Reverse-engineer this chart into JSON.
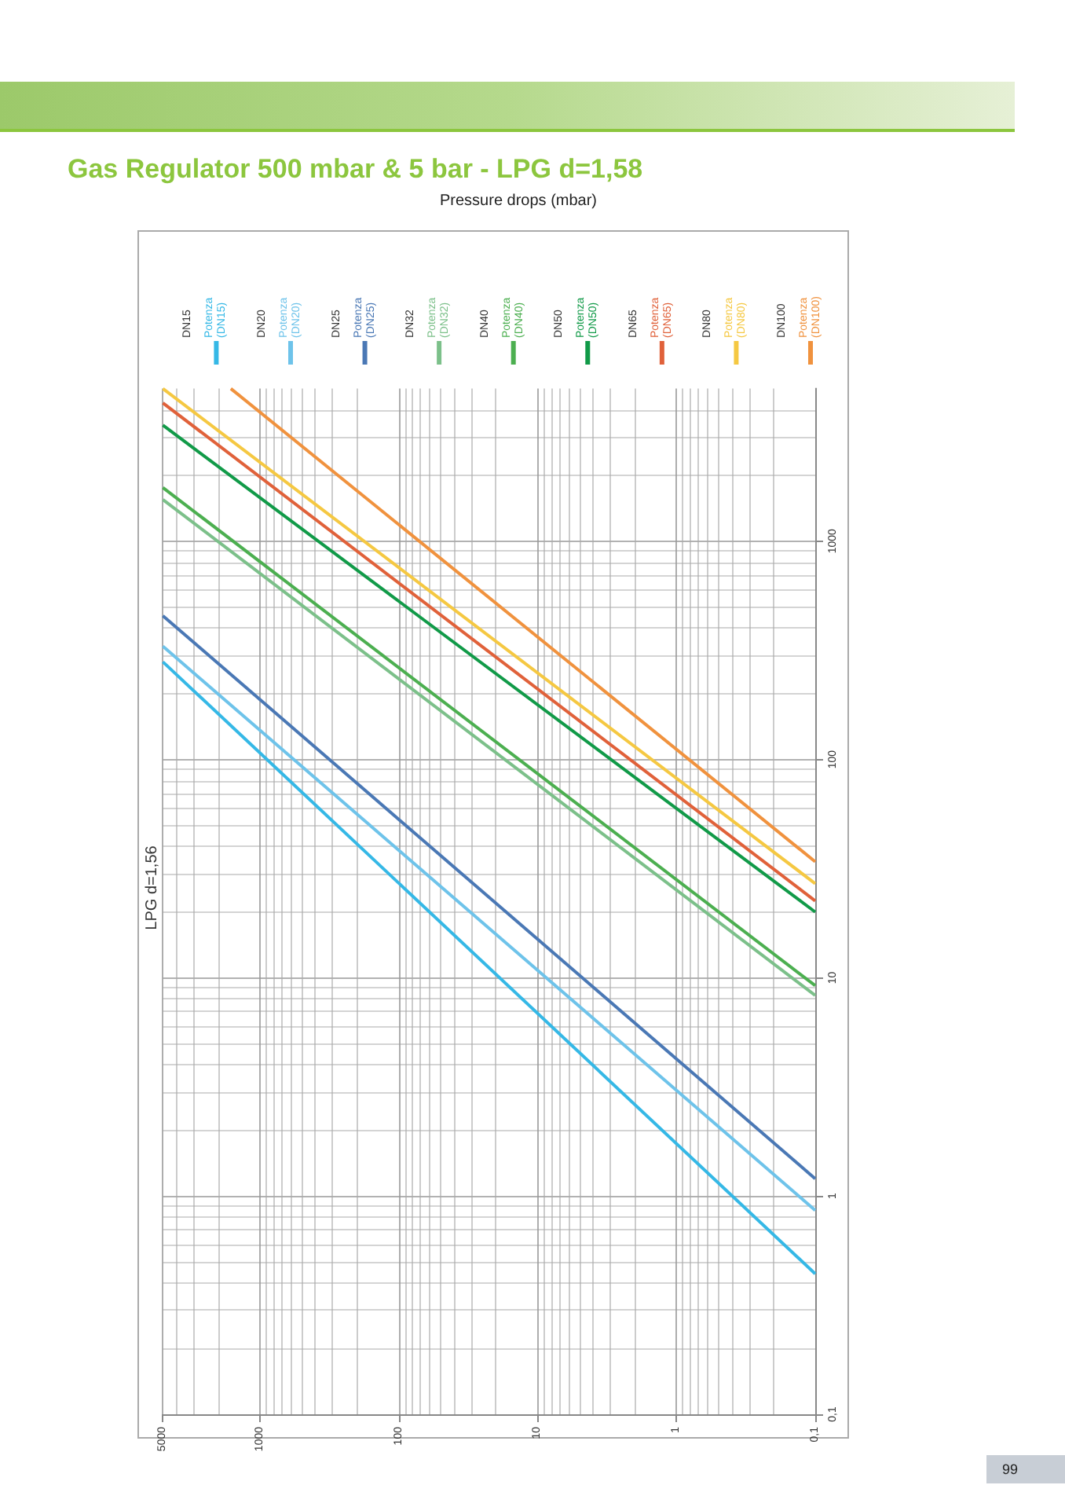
{
  "chart_data": {
    "type": "line",
    "title": "Gas Regulator 500 mbar & 5 bar - LPG d=1,58",
    "subtitle": "Pressure drops (mbar)",
    "ylabel": "LPG d=1,56",
    "annotations": [
      "DN15",
      "DN20",
      "DN25",
      "DN32",
      "DN40",
      "DN50",
      "DN65",
      "DN80",
      "DN100",
      "99"
    ],
    "log": "xy",
    "xlim": [
      5000,
      0.1
    ],
    "xticks": [
      5000,
      1000,
      100,
      10,
      1,
      {
        "value": 0.1,
        "label": "0,1"
      }
    ],
    "ylim": [
      0.1,
      5000
    ],
    "yticks": [
      {
        "value": 0.1,
        "label": "0,1"
      },
      1,
      10,
      100,
      1000
    ],
    "grid": true,
    "legend": "top",
    "marker": "none",
    "line_style": "solid",
    "series": [
      {
        "name": "Potenza (DN15)",
        "color": "#35b8e6",
        "x": [
          5000,
          0.1
        ],
        "values": [
          280,
          0.44
        ]
      },
      {
        "name": "Potenza (DN20)",
        "color": "#6ec3ea",
        "x": [
          5000,
          0.1
        ],
        "values": [
          330,
          0.86
        ]
      },
      {
        "name": "Potenza (DN25)",
        "color": "#4a78b5",
        "x": [
          5000,
          0.1
        ],
        "values": [
          455,
          1.2
        ]
      },
      {
        "name": "Potenza (DN32)",
        "color": "#7cc08a",
        "x": [
          5000,
          0.1
        ],
        "values": [
          1550,
          8.3
        ]
      },
      {
        "name": "Potenza (DN40)",
        "color": "#4caf50",
        "x": [
          5000,
          0.1
        ],
        "values": [
          1760,
          9.2
        ]
      },
      {
        "name": "Potenza (DN50)",
        "color": "#119a48",
        "x": [
          5000,
          0.1
        ],
        "values": [
          3400,
          20
        ]
      },
      {
        "name": "Potenza (DN65)",
        "color": "#e0613a",
        "x": [
          5000,
          0.1
        ],
        "values": [
          4300,
          22.5
        ]
      },
      {
        "name": "Potenza (DN80)",
        "color": "#f5c842",
        "x": [
          5000,
          0.1
        ],
        "values": [
          5000,
          27
        ]
      },
      {
        "name": "Potenza (DN100)",
        "color": "#f0923e",
        "x": [
          1620,
          0.1
        ],
        "values": [
          5000,
          34
        ]
      }
    ]
  }
}
